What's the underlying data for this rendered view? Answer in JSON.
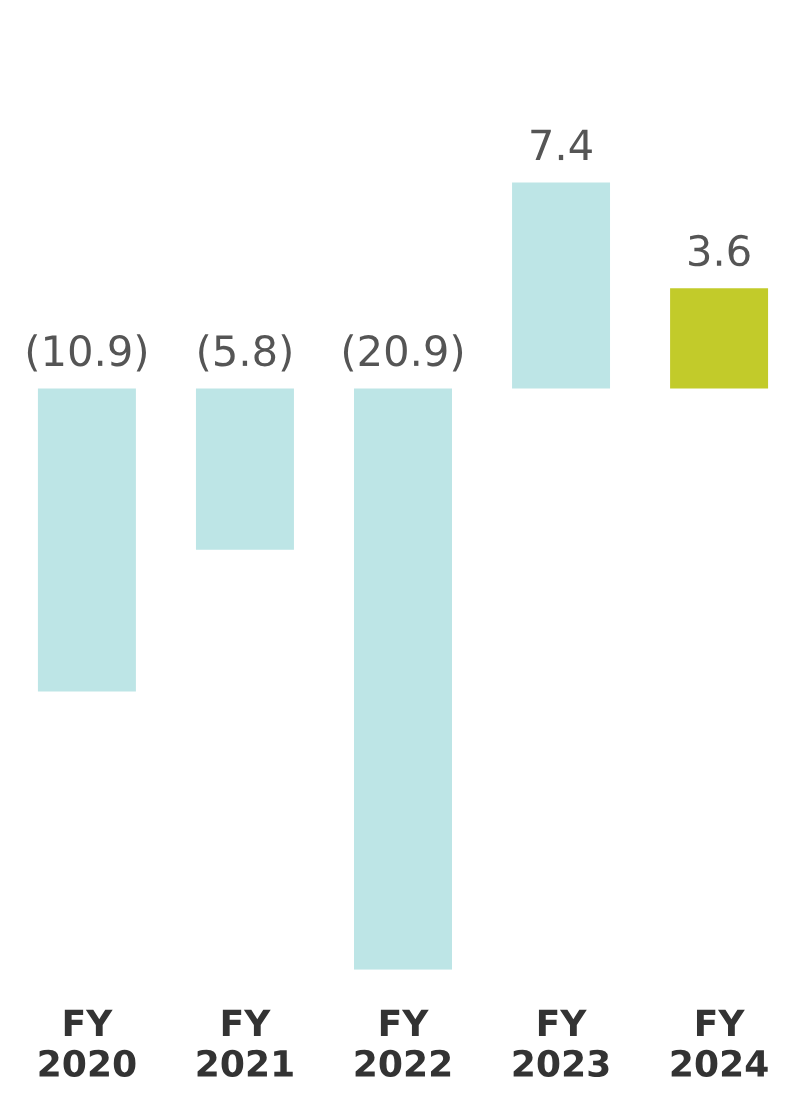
{
  "chart_data": {
    "type": "bar",
    "categories": [
      "FY\n2020",
      "FY\n2021",
      "FY\n2022",
      "FY\n2023",
      "FY\n2024"
    ],
    "values": [
      -10.9,
      -5.8,
      -20.9,
      7.4,
      3.6
    ],
    "colors": [
      "#bde5e6",
      "#bde5e6",
      "#bde5e6",
      "#bde5e6",
      "#c2cb2a"
    ],
    "value_labels": [
      "(10.9)",
      "(5.8)",
      "(20.9)",
      "7.4",
      "3.6"
    ],
    "grid": false,
    "legend": false
  }
}
